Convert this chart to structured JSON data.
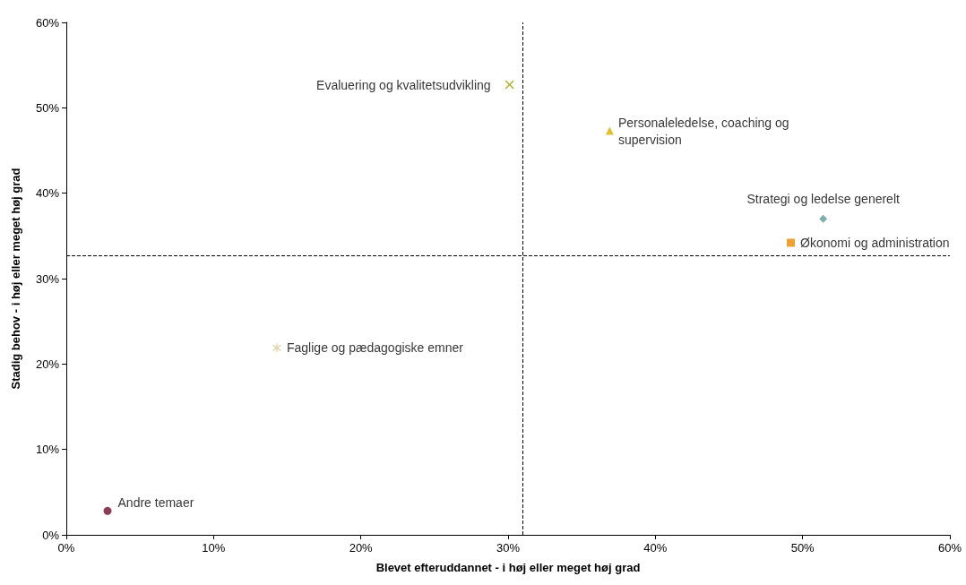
{
  "chart_data": {
    "type": "scatter",
    "xlabel": "Blevet efteruddannet - i høj eller meget høj grad",
    "ylabel": "Stadig behov - i høj eller meget høj grad",
    "xlim": [
      0,
      60
    ],
    "ylim": [
      0,
      60
    ],
    "xticks": [
      {
        "value": 0,
        "label": "0%"
      },
      {
        "value": 10,
        "label": "10%"
      },
      {
        "value": 20,
        "label": "20%"
      },
      {
        "value": 30,
        "label": "30%"
      },
      {
        "value": 40,
        "label": "40%"
      },
      {
        "value": 50,
        "label": "50%"
      },
      {
        "value": 60,
        "label": "60%"
      }
    ],
    "yticks": [
      {
        "value": 0,
        "label": "0%"
      },
      {
        "value": 10,
        "label": "10%"
      },
      {
        "value": 20,
        "label": "20%"
      },
      {
        "value": 30,
        "label": "30%"
      },
      {
        "value": 40,
        "label": "40%"
      },
      {
        "value": 50,
        "label": "50%"
      },
      {
        "value": 60,
        "label": "60%"
      }
    ],
    "grid": false,
    "legend": false,
    "series": [
      {
        "name": "Andre temaer",
        "color": "#6b0f2b",
        "marker": "circle",
        "x": [
          2.8
        ],
        "values": [
          2.8
        ]
      },
      {
        "name": "Faglige og pædagogiske emner",
        "color": "#d8c88c",
        "marker": "star",
        "x": [
          14.3
        ],
        "values": [
          21.9
        ]
      },
      {
        "name": "Evaluering og kvalitetsudvikling",
        "color": "#9a9a00",
        "marker": "cross",
        "x": [
          30.1
        ],
        "values": [
          52.7
        ]
      },
      {
        "name": "Personaleledelse, coaching og supervision",
        "color": "#d4b000",
        "marker": "triangle",
        "x": [
          36.9
        ],
        "values": [
          47.3
        ]
      },
      {
        "name": "Strategi og ledelse generelt",
        "color": "#5f9a98",
        "marker": "diamond",
        "x": [
          51.4
        ],
        "values": [
          37.0
        ]
      },
      {
        "name": "Økonomi og administration",
        "color": "#e88a00",
        "marker": "square",
        "x": [
          49.2
        ],
        "values": [
          34.2
        ]
      }
    ],
    "ref_lines": [
      {
        "axis": "x",
        "value": 31.0,
        "color": "#000000",
        "line_style": "dashed"
      },
      {
        "axis": "y",
        "value": 32.7,
        "color": "#000000",
        "line_style": "dashed"
      }
    ]
  }
}
